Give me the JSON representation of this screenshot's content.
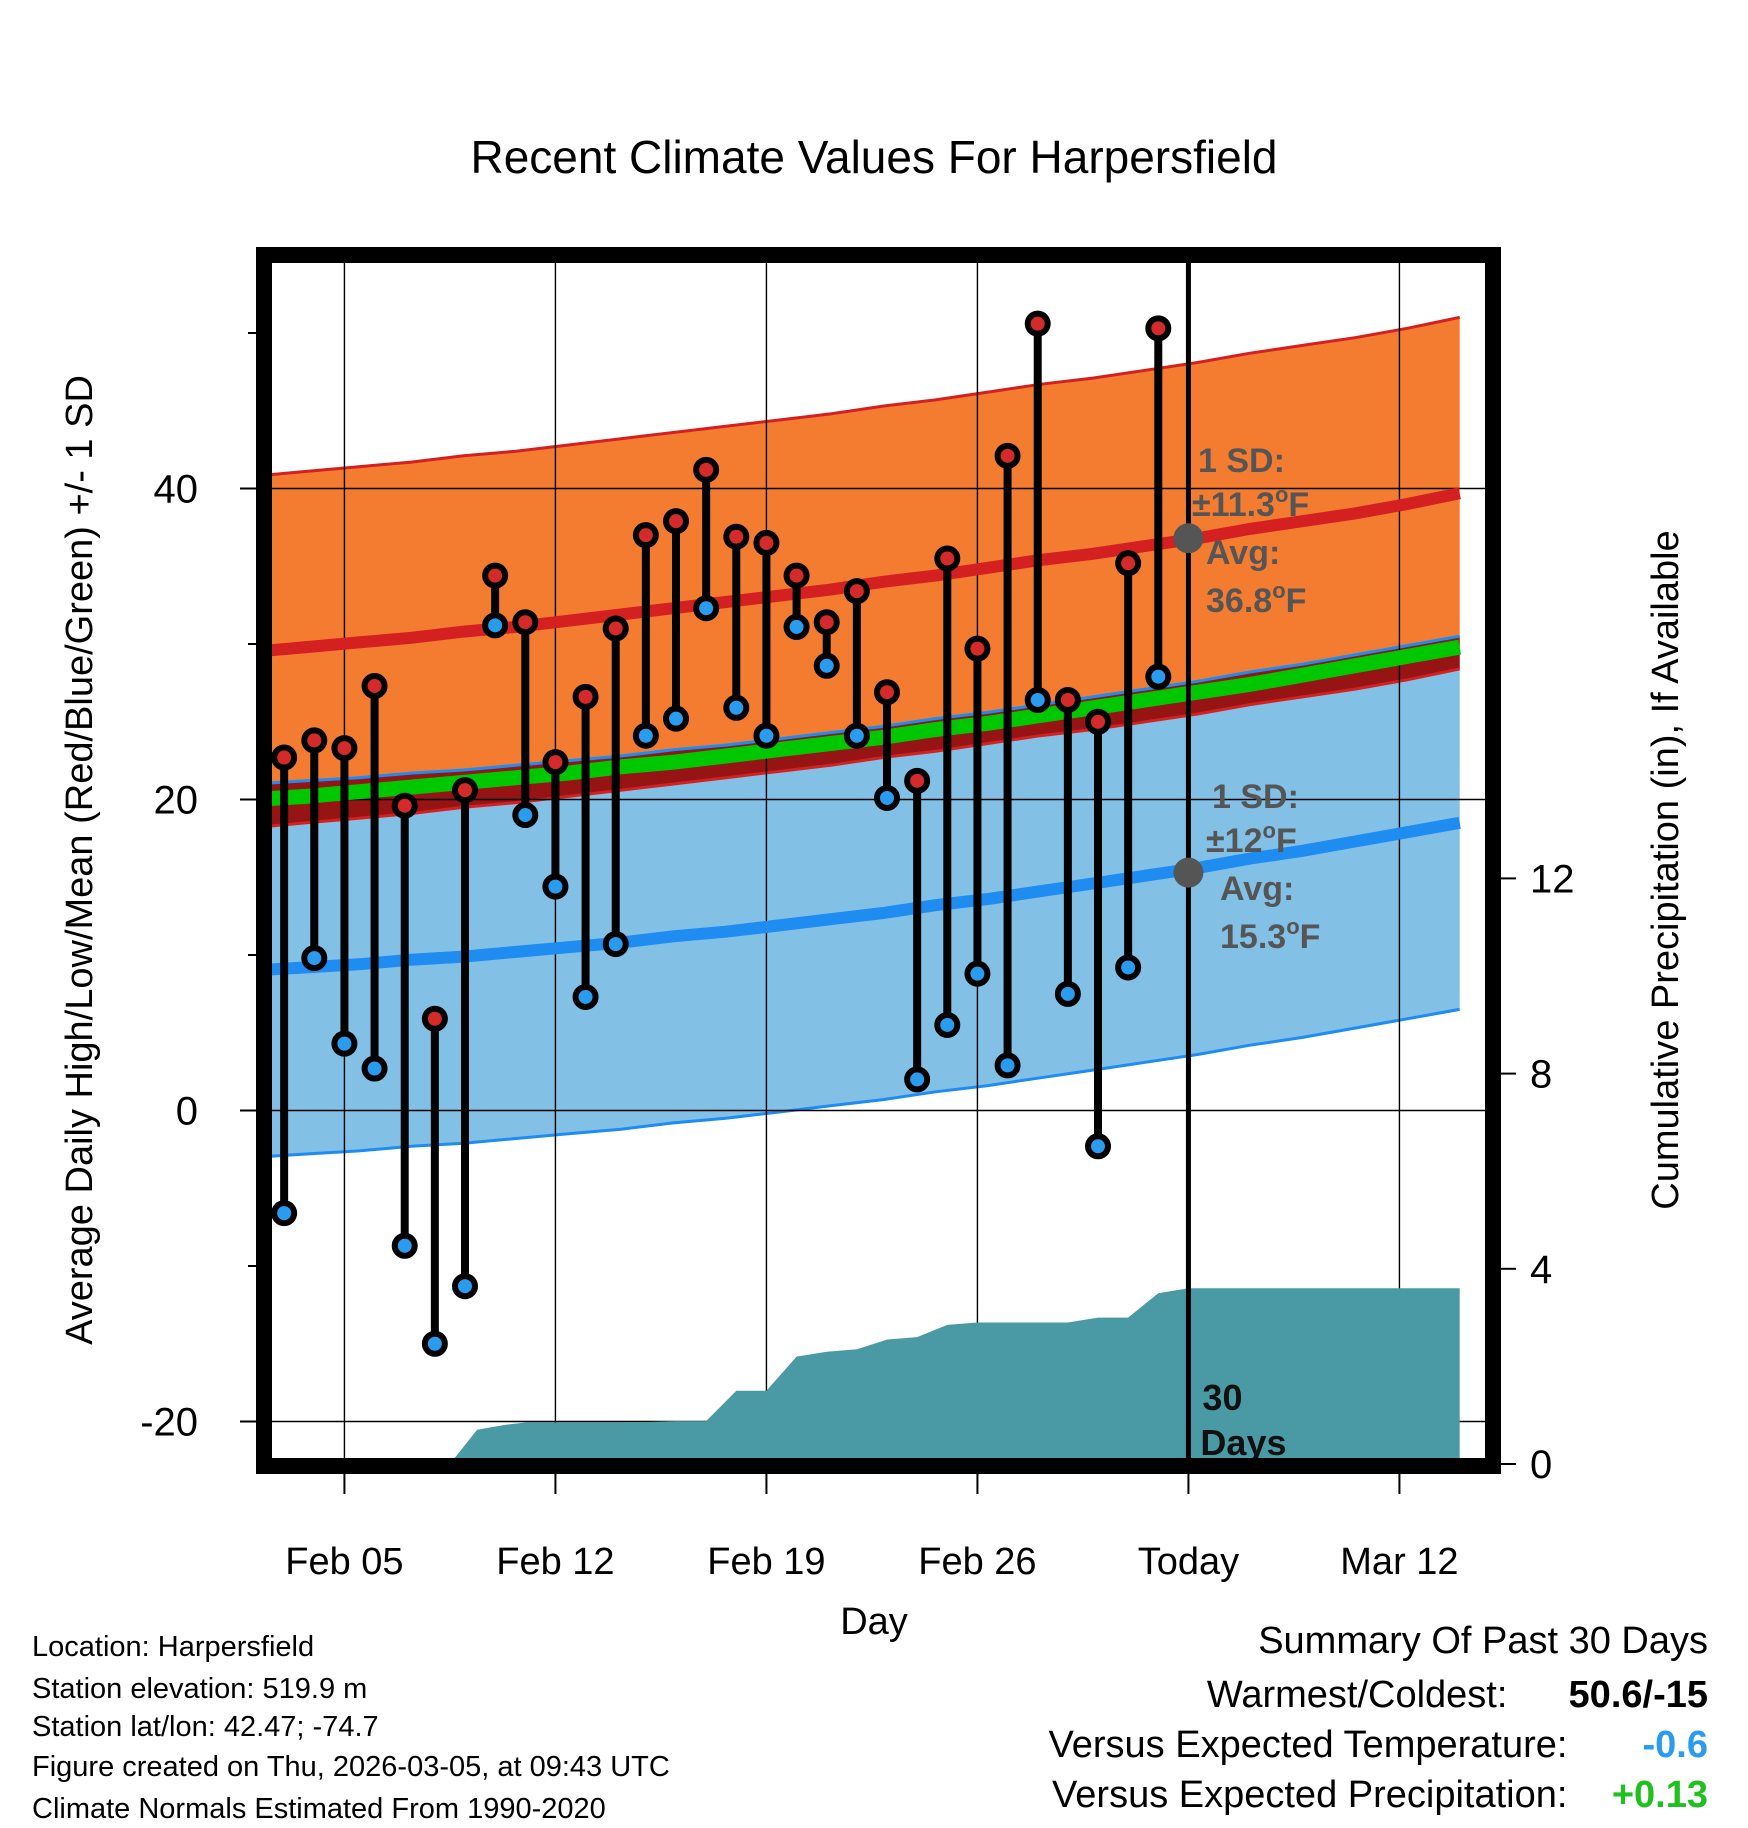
{
  "chart_data": {
    "type": "line",
    "title": "Recent Climate Values For Harpersfield",
    "xlabel": "Day",
    "ylabel": "Average Daily High/Low/Mean (Red/Blue/Green) +/- 1 SD",
    "ylabel_right": "Cumulative Precipitation (in), If Available",
    "x_range": [
      0,
      40
    ],
    "ylim": [
      -23.2,
      53.4
    ],
    "ylim_right": [
      0,
      24.6
    ],
    "x_ticks": [
      {
        "x": 3,
        "label": "Feb 05"
      },
      {
        "x": 10,
        "label": "Feb 12"
      },
      {
        "x": 17,
        "label": "Feb 19"
      },
      {
        "x": 24,
        "label": "Feb 26"
      },
      {
        "x": 31,
        "label": "Today"
      },
      {
        "x": 38,
        "label": "Mar 12"
      }
    ],
    "y_ticks": [
      -20,
      0,
      20,
      40
    ],
    "y_minor_ticks": [
      -10,
      10,
      30,
      50
    ],
    "y_ticks_right": [
      0,
      4,
      8,
      12
    ],
    "today_x": 31,
    "today_label": [
      "30",
      "Days"
    ],
    "daily_high": [
      22.7,
      23.8,
      23.3,
      27.3,
      19.6,
      5.9,
      20.6,
      34.4,
      31.4,
      22.4,
      26.6,
      31.0,
      37.0,
      37.9,
      41.2,
      36.9,
      36.5,
      34.4,
      31.4,
      33.4,
      26.9,
      21.2,
      35.5,
      29.7,
      42.1,
      50.6,
      26.4,
      25.0,
      35.2,
      50.3
    ],
    "daily_low": [
      -6.6,
      9.8,
      4.3,
      2.7,
      -8.7,
      -15.0,
      -11.3,
      31.2,
      19.0,
      14.4,
      7.3,
      10.7,
      24.1,
      25.2,
      32.3,
      25.9,
      24.1,
      31.1,
      28.6,
      24.1,
      20.1,
      2.0,
      5.5,
      8.8,
      2.9,
      26.4,
      7.5,
      -2.3,
      9.2,
      27.9
    ],
    "normal_high_mean": [
      29.5,
      29.8,
      30.1,
      30.4,
      30.8,
      31.1,
      31.5,
      31.9,
      32.3,
      32.7,
      33.1,
      33.5,
      34.0,
      34.4,
      34.9,
      35.4,
      35.8,
      36.3,
      36.8,
      37.4,
      37.9,
      38.4,
      39.0,
      39.7
    ],
    "normal_high_sd": 11.3,
    "normal_low_mean": [
      9.0,
      9.2,
      9.4,
      9.7,
      9.9,
      10.2,
      10.5,
      10.8,
      11.2,
      11.5,
      11.9,
      12.3,
      12.7,
      13.2,
      13.6,
      14.1,
      14.6,
      15.1,
      15.6,
      16.2,
      16.7,
      17.3,
      17.9,
      18.5
    ],
    "normal_low_sd": 12.0,
    "normal_mean": [
      20.0,
      20.2,
      20.5,
      20.8,
      21.1,
      21.4,
      21.7,
      22.1,
      22.4,
      22.8,
      23.2,
      23.6,
      24.0,
      24.5,
      24.9,
      25.4,
      25.9,
      26.4,
      26.9,
      27.4,
      28.0,
      28.6,
      29.2,
      29.8
    ],
    "normal_x": [
      0,
      1.739,
      3.478,
      5.217,
      6.957,
      8.696,
      10.435,
      12.174,
      13.913,
      15.652,
      17.391,
      19.13,
      20.87,
      22.609,
      24.348,
      26.087,
      27.826,
      29.565,
      31.304,
      33.043,
      34.783,
      36.522,
      38.261,
      40
    ],
    "precip_x": [
      6.5,
      7.4,
      8.3,
      9.0,
      10.0,
      11.0,
      12.0,
      13.0,
      14.0,
      15.0,
      16.0,
      17.0,
      18.0,
      19.0,
      20.0,
      21.0,
      22.0,
      23.0,
      24.0,
      25.0,
      26.0,
      27.0,
      28.0,
      29.0,
      30.0,
      31.0,
      32.0,
      40.0
    ],
    "precip_cumulative": [
      0.0,
      0.7,
      0.8,
      0.85,
      0.85,
      0.85,
      0.85,
      0.86,
      0.88,
      0.88,
      1.5,
      1.5,
      2.2,
      2.3,
      2.35,
      2.55,
      2.6,
      2.85,
      2.9,
      2.9,
      2.9,
      2.9,
      3.0,
      3.0,
      3.5,
      3.6,
      3.6,
      3.6
    ],
    "annotations": {
      "high": {
        "sd": "1 SD:",
        "sd_val": "±11.3",
        "avg": "Avg:",
        "avg_val": "36.8",
        "unit": "F",
        "avg_value": 36.8
      },
      "low": {
        "sd": "1 SD:",
        "sd_val": "±12",
        "avg": "Avg:",
        "avg_val": "15.3",
        "unit": "F",
        "avg_value": 15.3
      }
    },
    "colors": {
      "high_band": "#f47c30",
      "high_band_edge": "#d42020",
      "high_mean_line": "#d42020",
      "low_band": "#82c0e6",
      "low_band_edge": "#1e8cf0",
      "low_mean_line": "#1e8cf0",
      "mean_line": "#00c800",
      "overlap": "#961414",
      "precip": "#4a9aa5",
      "high_dot": "#d42a2a",
      "low_dot": "#2a9cf0",
      "annotation": "#555555"
    }
  },
  "info": {
    "location": "Location: Harpersfield",
    "elevation": "Station elevation: 519.9 m",
    "latlon": "Station lat/lon: 42.47; -74.7",
    "created": "Figure created on Thu, 2026-03-05, at 09:43 UTC",
    "normals": "Climate Normals Estimated From 1990-2020"
  },
  "summary": {
    "title": "Summary Of Past 30 Days",
    "warmest_label": "Warmest/Coldest:",
    "warmest_value": "50.6/-15",
    "temp_label": "Versus Expected Temperature:",
    "temp_value": "-0.6",
    "temp_color": "#2a9cf0",
    "precip_label": "Versus Expected Precipitation:",
    "precip_value": "+0.13",
    "precip_color": "#20c020"
  }
}
